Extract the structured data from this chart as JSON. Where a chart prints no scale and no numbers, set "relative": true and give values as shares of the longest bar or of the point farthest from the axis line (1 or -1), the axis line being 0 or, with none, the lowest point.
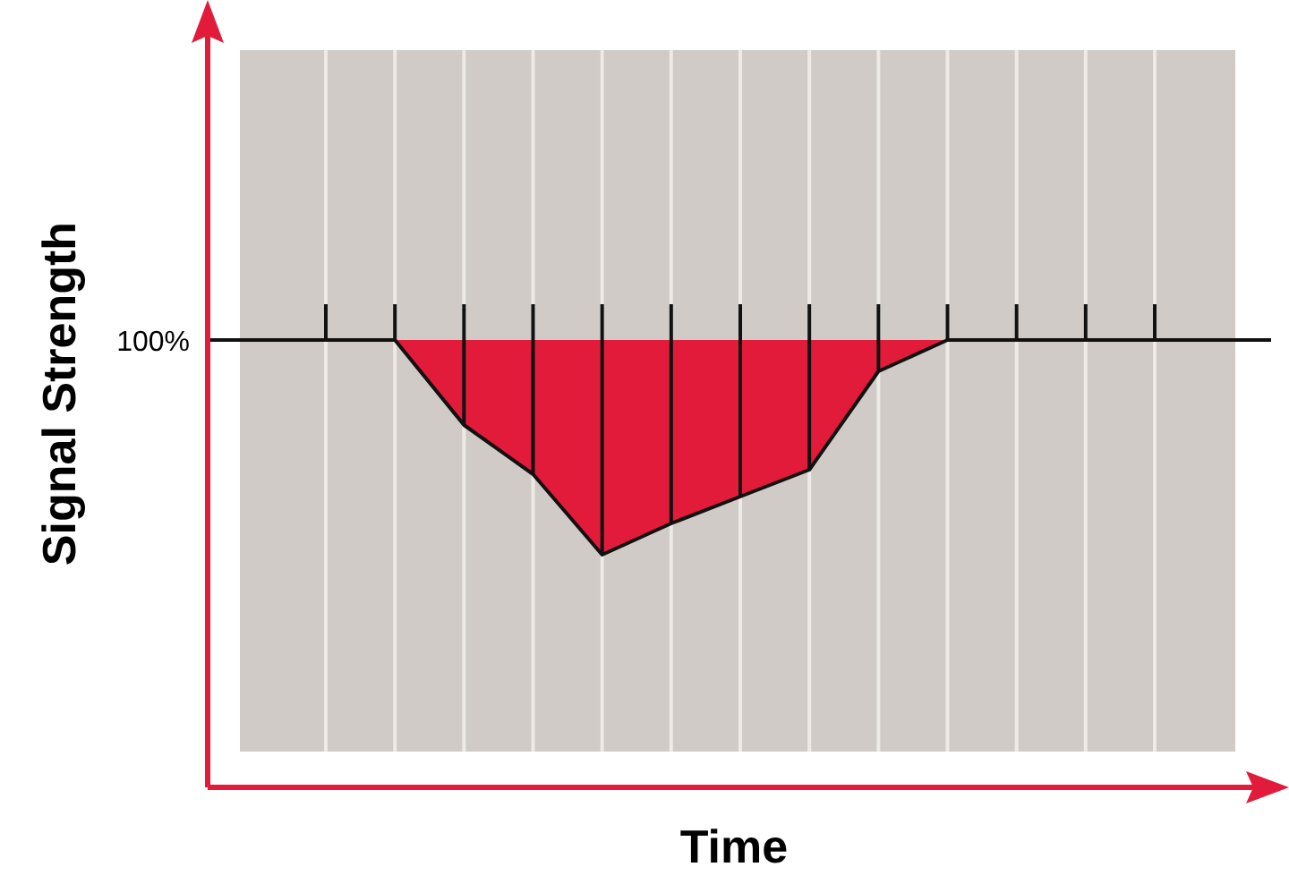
{
  "chart_data": {
    "type": "area",
    "xlabel": "Time",
    "ylabel": "Signal Strength",
    "relative": true,
    "grid": "x",
    "categories": [
      null,
      null,
      null,
      null,
      null,
      null,
      null,
      null,
      null,
      null,
      null,
      null,
      null
    ],
    "series": [
      {
        "color": "#e31b3a",
        "values": [
          1,
          1,
          0.81,
          0.7,
          0.52,
          0.59,
          0.65,
          0.71,
          0.93,
          1,
          1,
          1,
          1
        ]
      }
    ],
    "annotations": [
      "100%"
    ]
  }
}
